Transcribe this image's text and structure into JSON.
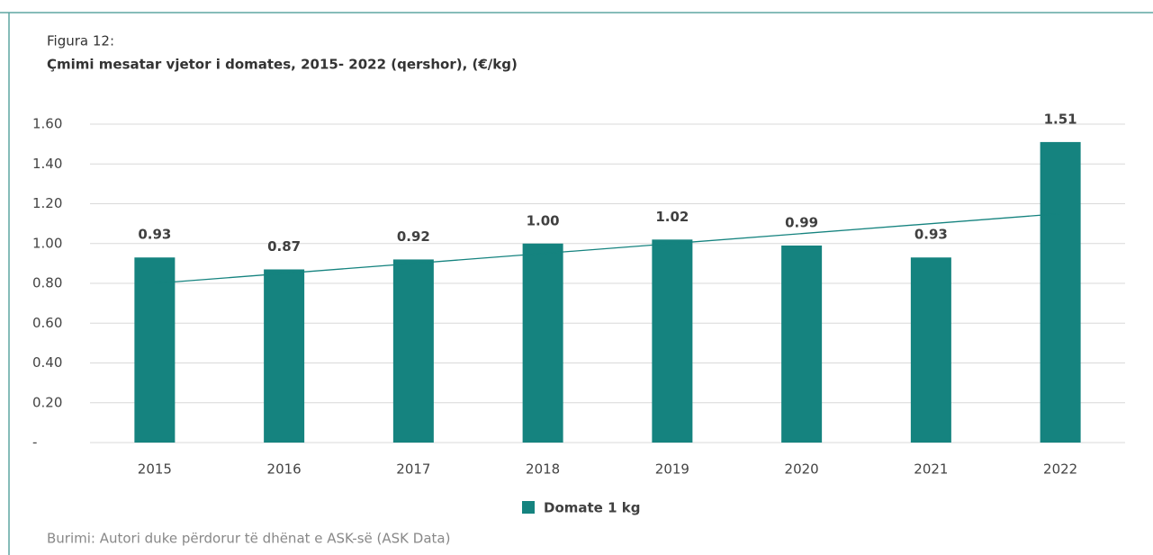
{
  "chart_data": {
    "type": "bar",
    "title": "Figura 12:",
    "subtitle": "Çmimi mesatar vjetor i domates, 2015- 2022 (qershor), (€/kg)",
    "source": "Burimi: Autori duke përdorur të dhënat e ASK-së (ASK Data)",
    "categories": [
      "2015",
      "2016",
      "2017",
      "2018",
      "2019",
      "2020",
      "2021",
      "2022"
    ],
    "series": [
      {
        "name": "Domate 1 kg",
        "color": "#15837f",
        "values": [
          0.93,
          0.87,
          0.92,
          1.0,
          1.02,
          0.99,
          0.93,
          1.51
        ],
        "value_labels": [
          "0.93",
          "0.87",
          "0.92",
          "1.00",
          "1.02",
          "0.99",
          "0.93",
          "1.51"
        ]
      }
    ],
    "trendline": {
      "color": "#15837f",
      "values": [
        0.8,
        1.15
      ]
    },
    "ylim": [
      0,
      1.6
    ],
    "yticks": [
      {
        "value": 0,
        "label": "-"
      },
      {
        "value": 0.2,
        "label": "0.20"
      },
      {
        "value": 0.4,
        "label": "0.40"
      },
      {
        "value": 0.6,
        "label": "0.60"
      },
      {
        "value": 0.8,
        "label": "0.80"
      },
      {
        "value": 1.0,
        "label": "1.00"
      },
      {
        "value": 1.2,
        "label": "1.20"
      },
      {
        "value": 1.4,
        "label": "1.40"
      },
      {
        "value": 1.6,
        "label": "1.60"
      }
    ],
    "grid": true,
    "legend": "bottom"
  }
}
